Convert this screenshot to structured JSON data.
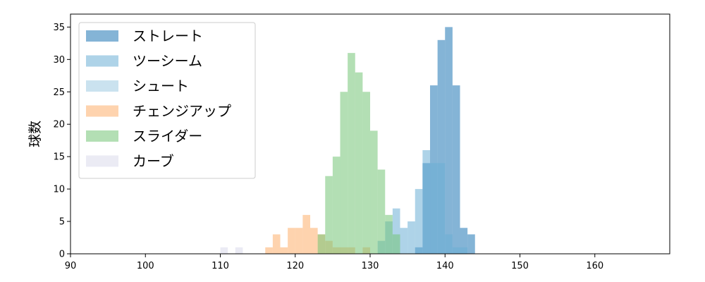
{
  "chart_data": {
    "type": "bar",
    "subtype": "overlapping-histogram",
    "title": "",
    "xlabel": "",
    "ylabel": "球数",
    "xlim": [
      90,
      170
    ],
    "ylim": [
      0,
      37
    ],
    "xticks": [
      90,
      100,
      110,
      120,
      130,
      140,
      150,
      160
    ],
    "yticks": [
      0,
      5,
      10,
      15,
      20,
      25,
      30,
      35
    ],
    "grid": false,
    "legend_position": "top-left",
    "series": [
      {
        "name": "ストレート",
        "color": "#1f77b4",
        "bins": [
          [
            135,
            136,
            0
          ],
          [
            136,
            137,
            1
          ],
          [
            137,
            138,
            14
          ],
          [
            138,
            139,
            26
          ],
          [
            139,
            140,
            33
          ],
          [
            140,
            141,
            35
          ],
          [
            141,
            142,
            26
          ],
          [
            142,
            143,
            4
          ],
          [
            143,
            144,
            3
          ]
        ]
      },
      {
        "name": "ツーシーム",
        "color": "#6baed6",
        "bins": [
          [
            131,
            132,
            2
          ],
          [
            132,
            133,
            5
          ],
          [
            133,
            134,
            7
          ],
          [
            134,
            135,
            4
          ],
          [
            135,
            136,
            5
          ],
          [
            136,
            137,
            10
          ],
          [
            137,
            138,
            16
          ],
          [
            138,
            139,
            14
          ],
          [
            139,
            140,
            14
          ],
          [
            140,
            141,
            3
          ],
          [
            141,
            142,
            1
          ],
          [
            142,
            143,
            1
          ]
        ]
      },
      {
        "name": "シュート",
        "color": "#9ecae1",
        "bins": []
      },
      {
        "name": "チェンジアップ",
        "color": "#fdae6b",
        "bins": [
          [
            116,
            117,
            1
          ],
          [
            117,
            118,
            3
          ],
          [
            118,
            119,
            1
          ],
          [
            119,
            120,
            4
          ],
          [
            120,
            121,
            4
          ],
          [
            121,
            122,
            6
          ],
          [
            122,
            123,
            4
          ],
          [
            123,
            124,
            3
          ],
          [
            124,
            125,
            2
          ],
          [
            125,
            126,
            1
          ],
          [
            126,
            127,
            1
          ],
          [
            127,
            128,
            1
          ],
          [
            129,
            130,
            1
          ]
        ]
      },
      {
        "name": "スライダー",
        "color": "#74c476",
        "bins": [
          [
            123,
            124,
            3
          ],
          [
            124,
            125,
            12
          ],
          [
            125,
            126,
            15
          ],
          [
            126,
            127,
            25
          ],
          [
            127,
            128,
            31
          ],
          [
            128,
            129,
            28
          ],
          [
            129,
            130,
            25
          ],
          [
            130,
            131,
            19
          ],
          [
            131,
            132,
            13
          ],
          [
            132,
            133,
            6
          ],
          [
            133,
            134,
            3
          ]
        ]
      },
      {
        "name": "カーブ",
        "color": "#dadaeb",
        "bins": [
          [
            110,
            111,
            1
          ],
          [
            112,
            113,
            1
          ]
        ]
      }
    ]
  }
}
